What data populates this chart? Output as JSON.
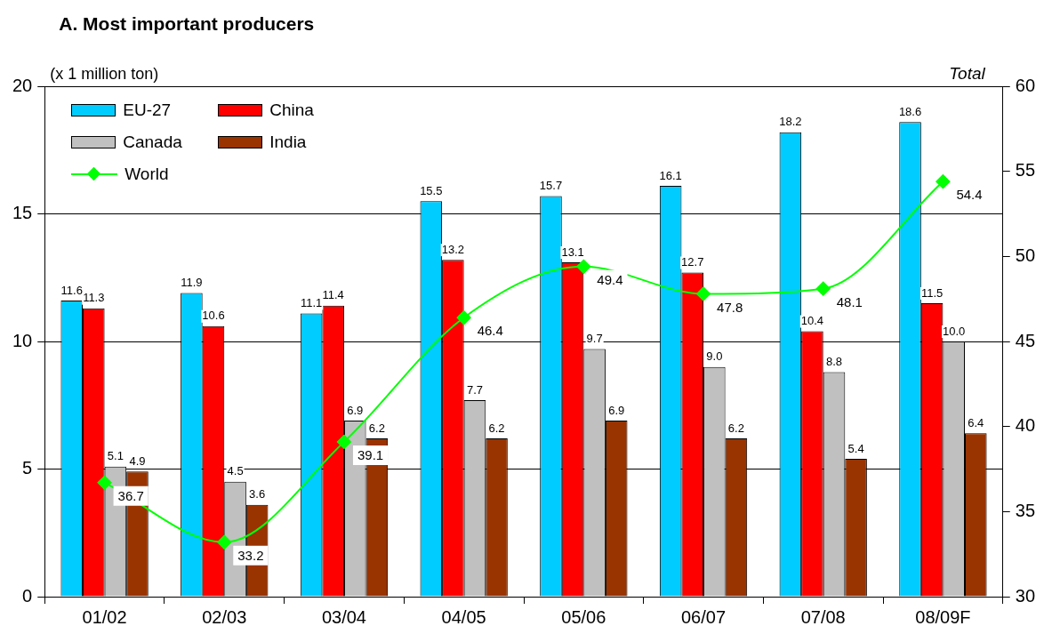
{
  "chart_data": {
    "type": "bar",
    "title": "A. Most important producers",
    "ylabel": "(x 1 million ton)",
    "y2label": "Total",
    "categories": [
      "01/02",
      "02/03",
      "03/04",
      "04/05",
      "05/06",
      "06/07",
      "07/08",
      "08/09F"
    ],
    "series": [
      {
        "name": "EU-27",
        "color": "#00ccff",
        "values": [
          11.6,
          11.9,
          11.1,
          15.5,
          15.7,
          16.1,
          18.2,
          18.6
        ],
        "value_labels": [
          "11.6",
          "11.9",
          "11.1",
          "15.5",
          "15.7",
          "16.1",
          "18.2",
          "18.6"
        ]
      },
      {
        "name": "China",
        "color": "#ff0000",
        "values": [
          11.3,
          10.6,
          11.4,
          13.2,
          13.1,
          12.7,
          10.4,
          11.5
        ],
        "value_labels": [
          "11.3",
          "10.6",
          "11.4",
          "13.2",
          "13.1",
          "12.7",
          "10.4",
          "11.5"
        ]
      },
      {
        "name": "Canada",
        "color": "#c0c0c0",
        "values": [
          5.1,
          4.5,
          6.9,
          7.7,
          9.7,
          9.0,
          8.8,
          10.0
        ],
        "value_labels": [
          "5.1",
          "4.5",
          "6.9",
          "7.7",
          "9.7",
          "9.0",
          "8.8",
          "10.0"
        ]
      },
      {
        "name": "India",
        "color": "#993300",
        "values": [
          4.9,
          3.6,
          6.2,
          6.2,
          6.9,
          6.2,
          5.4,
          6.4
        ],
        "value_labels": [
          "4.9",
          "3.6",
          "6.2",
          "6.2",
          "6.9",
          "6.2",
          "5.4",
          "6.4"
        ]
      },
      {
        "name": "World",
        "type": "line",
        "axis": "y2",
        "color": "#00ff00",
        "values": [
          36.7,
          33.2,
          39.1,
          46.4,
          49.4,
          47.8,
          48.1,
          54.4
        ],
        "value_labels": [
          "36.7",
          "33.2",
          "39.1",
          "46.4",
          "49.4",
          "47.8",
          "48.1",
          "54.4"
        ]
      }
    ],
    "ylim": [
      0,
      20
    ],
    "yticks": [
      0,
      5,
      10,
      15,
      20
    ],
    "y2lim": [
      30,
      60
    ],
    "y2ticks": [
      30,
      35,
      40,
      45,
      50,
      55,
      60
    ],
    "grid": "y",
    "legend": "top left",
    "marker": "diamond"
  }
}
